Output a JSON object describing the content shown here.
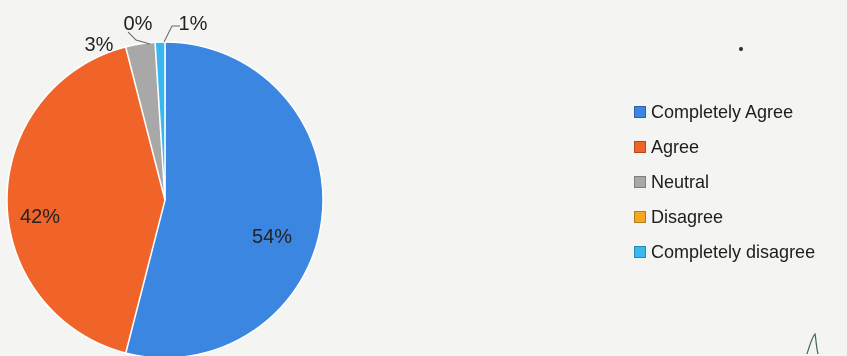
{
  "chart_data": {
    "type": "pie",
    "categories": [
      "Completely Agree",
      "Agree",
      "Neutral",
      "Disagree",
      "Completely disagree"
    ],
    "values": [
      54,
      42,
      3,
      0,
      1
    ],
    "value_labels": [
      "54%",
      "42%",
      "3%",
      "0%",
      "1%"
    ],
    "colors": [
      "#3a86e0",
      "#f0642a",
      "#a8a8a8",
      "#f5a623",
      "#38b8ee"
    ],
    "legend_position": "right",
    "title": ""
  }
}
